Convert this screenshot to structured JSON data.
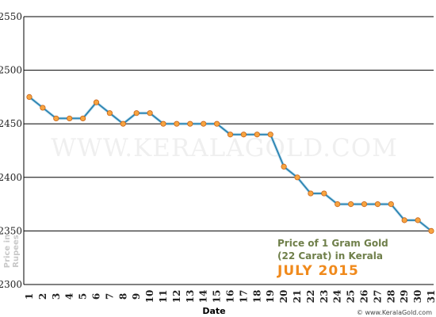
{
  "chart_data": {
    "type": "line",
    "xlabel": "Date",
    "ylabel_line1": "Price in",
    "ylabel_line2": "Rupees",
    "title_line1": "Price of 1 Gram Gold",
    "title_line2": "(22 Carat) in Kerala",
    "title_line3": "JULY 2015",
    "watermark": "WWW.KERALAGOLD.COM",
    "credit": "© www.KeralaGold.com",
    "ylim": [
      2300,
      2550
    ],
    "yticks": [
      2300,
      2350,
      2400,
      2450,
      2500,
      2550
    ],
    "x": [
      1,
      2,
      3,
      4,
      5,
      6,
      7,
      8,
      9,
      10,
      11,
      12,
      13,
      14,
      15,
      16,
      17,
      18,
      19,
      20,
      21,
      22,
      23,
      24,
      25,
      26,
      27,
      28,
      29,
      30,
      31
    ],
    "values": [
      2475,
      2465,
      2455,
      2455,
      2455,
      2470,
      2460,
      2450,
      2460,
      2460,
      2450,
      2450,
      2450,
      2450,
      2450,
      2440,
      2440,
      2440,
      2440,
      2410,
      2400,
      2385,
      2385,
      2375,
      2375,
      2375,
      2375,
      2375,
      2360,
      2360,
      2350
    ],
    "grid": "horizontal",
    "colors": {
      "line": "#2e86b4",
      "marker_fill": "#f7a440",
      "marker_stroke": "#c7641a",
      "grid": "#000000",
      "title_green": "#6f7f4a",
      "title_orange": "#f08a1c"
    }
  }
}
